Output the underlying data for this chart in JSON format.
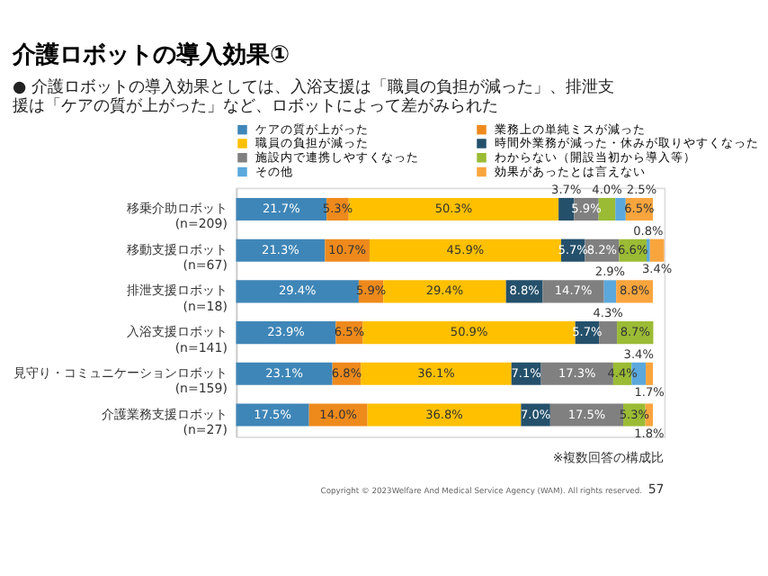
{
  "chart_data": {
    "type": "bar",
    "orientation": "horizontal",
    "stacked": true,
    "title": "介護ロボットの導入効果①",
    "subtitle": "● 介護ロボットの導入効果としては、入浴支援は「職員の負担が減った」、排泄支援は「ケアの質が上がった」など、ロボットによって差がみられた",
    "categories": [
      "移乗介助ロボット\n(n=209)",
      "移動支援ロボット\n(n=67)",
      "排泄支援ロボット\n(n=18)",
      "入浴支援ロボット\n(n=141)",
      "見守り・コミュニケーションロボット\n(n=159)",
      "介護業務支援ロボット\n(n=27)"
    ],
    "series": [
      {
        "name": "ケアの質が上がった",
        "color": "#3f86b8",
        "values": [
          21.7,
          21.3,
          29.4,
          23.9,
          23.1,
          17.5
        ],
        "value_labels": [
          "21.7%",
          "21.3%",
          "29.4%",
          "23.9%",
          "23.1%",
          "17.5%"
        ]
      },
      {
        "name": "業務上の単純ミスが減った",
        "color": "#ee8a1c",
        "values": [
          5.3,
          10.7,
          5.9,
          6.5,
          6.8,
          14.0
        ],
        "value_labels": [
          "5.3%",
          "10.7%",
          "5.9%",
          "6.5%",
          "6.8%",
          "14.0%"
        ]
      },
      {
        "name": "職員の負担が減った",
        "color": "#ffc000",
        "values": [
          50.3,
          45.9,
          29.4,
          50.9,
          36.1,
          36.8
        ],
        "value_labels": [
          "50.3%",
          "45.9%",
          "29.4%",
          "50.9%",
          "36.1%",
          "36.8%"
        ]
      },
      {
        "name": "時間外業務が減った・休みが取りやすくなった",
        "color": "#24506b",
        "values": [
          3.7,
          5.7,
          8.8,
          5.7,
          7.1,
          7.0
        ],
        "value_labels": [
          "3.7%",
          "5.7%",
          "8.8%",
          "5.7%",
          "7.1%",
          "7.0%"
        ]
      },
      {
        "name": "施設内で連携しやすくなった",
        "color": "#808080",
        "values": [
          5.9,
          8.2,
          14.7,
          4.3,
          17.3,
          17.5
        ],
        "value_labels": [
          "5.9%",
          "8.2%",
          "14.7%",
          "4.3%",
          "17.3%",
          "17.5%"
        ]
      },
      {
        "name": "わからない（開設当初から導入等）",
        "color": "#9bbb35",
        "values": [
          4.0,
          6.6,
          null,
          8.7,
          4.4,
          5.3
        ],
        "value_labels": [
          "4.0%",
          "6.6%",
          null,
          "8.7%",
          "4.4%",
          "5.3%"
        ]
      },
      {
        "name": "その他",
        "color": "#5ba8dc",
        "values": [
          2.5,
          0.8,
          2.9,
          null,
          3.4,
          null
        ],
        "value_labels": [
          "2.5%",
          "0.8%",
          "2.9%",
          null,
          "3.4%",
          null
        ]
      },
      {
        "name": "効果があったとは言えない",
        "color": "#f9a53e",
        "values": [
          6.5,
          3.4,
          8.8,
          null,
          1.7,
          1.8
        ],
        "value_labels": [
          "6.5%",
          "3.4%",
          "8.8%",
          null,
          "1.7%",
          "1.8%"
        ]
      }
    ],
    "legend": "top",
    "annotations": [
      "※複数回答の構成比",
      "Copyright © 2023Welfare And Medical Service Agency (WAM). All rights reserved.",
      "57"
    ]
  }
}
